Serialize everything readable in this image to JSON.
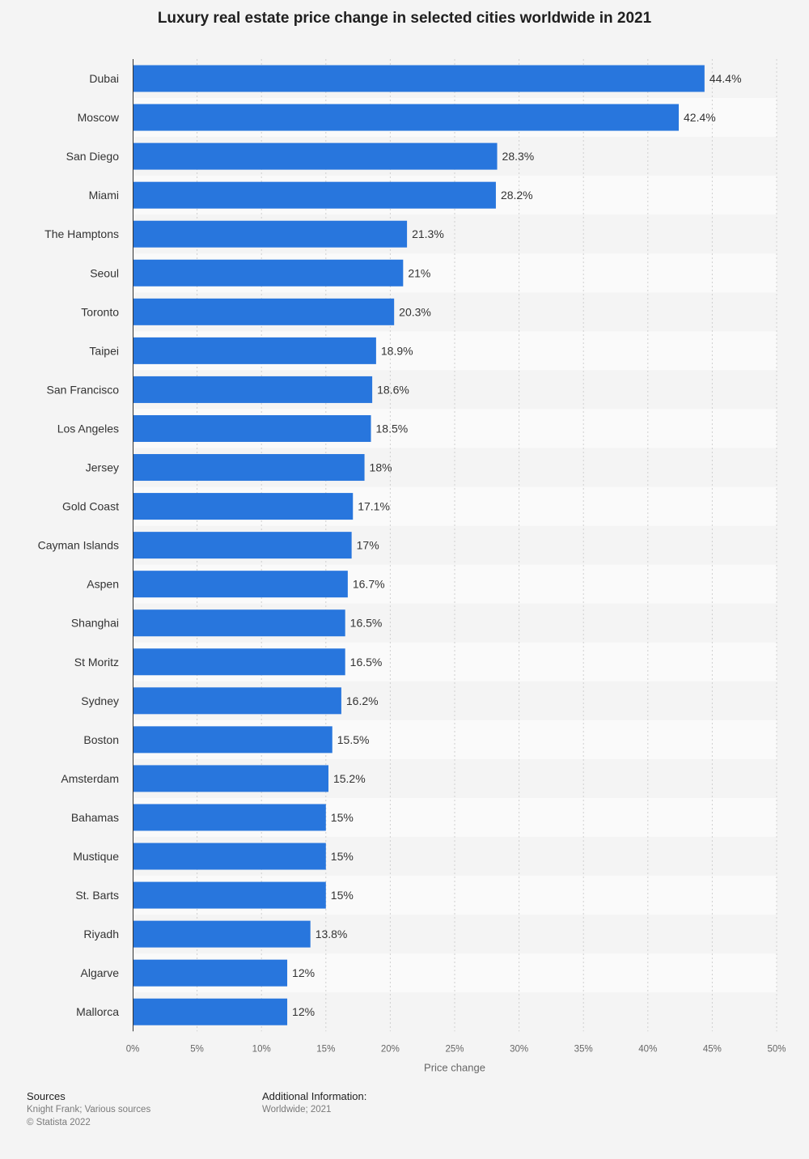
{
  "chart_data": {
    "type": "bar",
    "orientation": "horizontal",
    "title": "Luxury real estate price change in selected cities worldwide in 2021",
    "categories": [
      "Dubai",
      "Moscow",
      "San Diego",
      "Miami",
      "The Hamptons",
      "Seoul",
      "Toronto",
      "Taipei",
      "San Francisco",
      "Los Angeles",
      "Jersey",
      "Gold Coast",
      "Cayman Islands",
      "Aspen",
      "Shanghai",
      "St Moritz",
      "Sydney",
      "Boston",
      "Amsterdam",
      "Bahamas",
      "Mustique",
      "St. Barts",
      "Riyadh",
      "Algarve",
      "Mallorca"
    ],
    "values": [
      44.4,
      42.4,
      28.3,
      28.2,
      21.3,
      21,
      20.3,
      18.9,
      18.6,
      18.5,
      18,
      17.1,
      17,
      16.7,
      16.5,
      16.5,
      16.2,
      15.5,
      15.2,
      15,
      15,
      15,
      13.8,
      12,
      12
    ],
    "value_labels": [
      "44.4%",
      "42.4%",
      "28.3%",
      "28.2%",
      "21.3%",
      "21%",
      "20.3%",
      "18.9%",
      "18.6%",
      "18.5%",
      "18%",
      "17.1%",
      "17%",
      "16.7%",
      "16.5%",
      "16.5%",
      "16.2%",
      "15.5%",
      "15.2%",
      "15%",
      "15%",
      "15%",
      "13.8%",
      "12%",
      "12%"
    ],
    "xlabel": "Price change",
    "ylabel": "",
    "xlim": [
      0,
      50
    ],
    "ticks": [
      0,
      5,
      10,
      15,
      20,
      25,
      30,
      35,
      40,
      45,
      50
    ],
    "tick_labels": [
      "0%",
      "5%",
      "10%",
      "15%",
      "20%",
      "25%",
      "30%",
      "35%",
      "40%",
      "45%",
      "50%"
    ],
    "grid": true,
    "bar_color": "#2876dd"
  },
  "footer": {
    "sources_heading": "Sources",
    "sources_line1": "Knight Frank; Various sources",
    "copyright": "© Statista 2022",
    "info_heading": "Additional Information:",
    "info_line1": "Worldwide; 2021"
  }
}
